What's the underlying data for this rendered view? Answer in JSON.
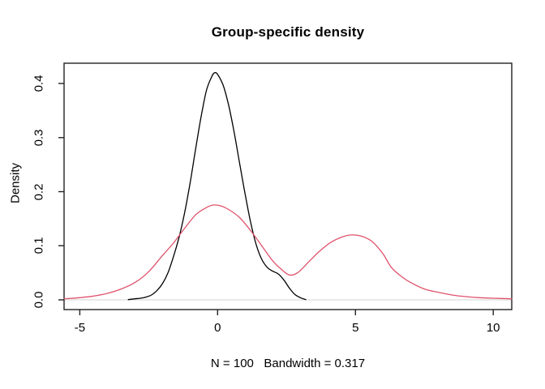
{
  "chart_data": {
    "type": "line",
    "title": "Group-specific density",
    "xlabel": "N = 100   Bandwidth = 0.317",
    "ylabel": "Density",
    "x_ticks": [
      -5,
      0,
      5,
      10
    ],
    "x_tick_labels": [
      "-5",
      "0",
      "5",
      "10"
    ],
    "y_ticks": [
      0.0,
      0.1,
      0.2,
      0.3,
      0.4
    ],
    "y_tick_labels": [
      "0.0",
      "0.1",
      "0.2",
      "0.3",
      "0.4"
    ],
    "xlim": [
      -5.57,
      10.67
    ],
    "ylim": [
      -0.018,
      0.4375
    ],
    "grid": false,
    "legend_position": "none",
    "axis_color": "#222222",
    "baseline": {
      "y": 0,
      "color": "#dcdcdc"
    },
    "series": [
      {
        "name": "group-1-density",
        "color": "#000000",
        "points": [
          [
            -3.24,
            0.0005
          ],
          [
            -3.0,
            0.002
          ],
          [
            -2.8,
            0.003
          ],
          [
            -2.6,
            0.005
          ],
          [
            -2.4,
            0.009
          ],
          [
            -2.2,
            0.017
          ],
          [
            -2.0,
            0.03
          ],
          [
            -1.8,
            0.05
          ],
          [
            -1.6,
            0.08
          ],
          [
            -1.4,
            0.115
          ],
          [
            -1.2,
            0.16
          ],
          [
            -1.0,
            0.215
          ],
          [
            -0.8,
            0.278
          ],
          [
            -0.6,
            0.338
          ],
          [
            -0.4,
            0.388
          ],
          [
            -0.2,
            0.414
          ],
          [
            -0.1,
            0.42
          ],
          [
            0.0,
            0.417
          ],
          [
            0.2,
            0.397
          ],
          [
            0.4,
            0.36
          ],
          [
            0.6,
            0.31
          ],
          [
            0.8,
            0.252
          ],
          [
            1.0,
            0.195
          ],
          [
            1.2,
            0.143
          ],
          [
            1.4,
            0.102
          ],
          [
            1.6,
            0.075
          ],
          [
            1.8,
            0.06
          ],
          [
            2.0,
            0.053
          ],
          [
            2.2,
            0.048
          ],
          [
            2.4,
            0.037
          ],
          [
            2.6,
            0.022
          ],
          [
            2.8,
            0.01
          ],
          [
            3.0,
            0.004
          ],
          [
            3.2,
            0.0005
          ]
        ]
      },
      {
        "name": "group-2-density",
        "color": "#DF536B",
        "points": [
          [
            -5.57,
            0.002
          ],
          [
            -5.0,
            0.004
          ],
          [
            -4.5,
            0.007
          ],
          [
            -4.0,
            0.012
          ],
          [
            -3.5,
            0.02
          ],
          [
            -3.0,
            0.032
          ],
          [
            -2.5,
            0.052
          ],
          [
            -2.0,
            0.082
          ],
          [
            -1.6,
            0.105
          ],
          [
            -1.2,
            0.132
          ],
          [
            -0.8,
            0.157
          ],
          [
            -0.5,
            0.168
          ],
          [
            -0.2,
            0.175
          ],
          [
            0.1,
            0.174
          ],
          [
            0.4,
            0.167
          ],
          [
            0.8,
            0.152
          ],
          [
            1.2,
            0.128
          ],
          [
            1.6,
            0.1
          ],
          [
            2.0,
            0.072
          ],
          [
            2.3,
            0.057
          ],
          [
            2.6,
            0.046
          ],
          [
            2.9,
            0.05
          ],
          [
            3.3,
            0.07
          ],
          [
            3.7,
            0.09
          ],
          [
            4.1,
            0.106
          ],
          [
            4.5,
            0.116
          ],
          [
            4.85,
            0.12
          ],
          [
            5.2,
            0.118
          ],
          [
            5.6,
            0.108
          ],
          [
            6.0,
            0.085
          ],
          [
            6.3,
            0.06
          ],
          [
            6.7,
            0.042
          ],
          [
            7.0,
            0.032
          ],
          [
            7.5,
            0.02
          ],
          [
            8.0,
            0.014
          ],
          [
            8.5,
            0.009
          ],
          [
            9.0,
            0.006
          ],
          [
            9.5,
            0.004
          ],
          [
            10.0,
            0.003
          ],
          [
            10.67,
            0.002
          ]
        ]
      }
    ]
  }
}
